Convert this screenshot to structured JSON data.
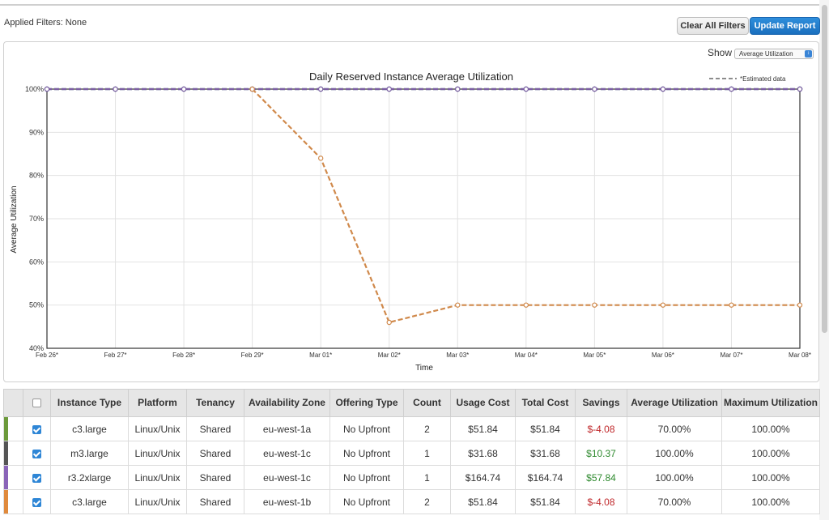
{
  "filters": {
    "applied_label": "Applied Filters: None"
  },
  "toolbar": {
    "clear_label": "Clear All Filters",
    "update_label": "Update Report"
  },
  "show": {
    "label": "Show",
    "selected": "Average Utilization"
  },
  "chart_data": {
    "type": "line",
    "title": "Daily Reserved Instance Average Utilization",
    "xlabel": "Time",
    "ylabel": "Average Utilization",
    "legend": {
      "label": "*Estimated data",
      "position": "top-right"
    },
    "x": [
      "Feb 26*",
      "Feb 27*",
      "Feb 28*",
      "Feb 29*",
      "Mar 01*",
      "Mar 02*",
      "Mar 03*",
      "Mar 04*",
      "Mar 05*",
      "Mar 06*",
      "Mar 07*",
      "Mar 08*"
    ],
    "ylim": [
      40,
      100
    ],
    "yticks": [
      40,
      50,
      60,
      70,
      80,
      90,
      100
    ],
    "ytick_labels": [
      "40%",
      "50%",
      "60%",
      "70%",
      "80%",
      "90%",
      "100%"
    ],
    "grid": true,
    "series": [
      {
        "color": "#3a7a63",
        "style": "dashed",
        "values": [
          100,
          100,
          100,
          100,
          100,
          100,
          100,
          100,
          100,
          100,
          100,
          100
        ]
      },
      {
        "color": "#5e6aa8",
        "style": "dashed",
        "values": [
          100,
          100,
          100,
          100,
          100,
          100,
          100,
          100,
          100,
          100,
          100,
          100
        ]
      },
      {
        "color": "#7d5fa3",
        "style": "dashed",
        "values": [
          100,
          100,
          100,
          100,
          100,
          100,
          100,
          100,
          100,
          100,
          100,
          100
        ]
      },
      {
        "color": "#d0894b",
        "style": "dashed",
        "values": [
          null,
          null,
          null,
          100,
          84,
          46,
          50,
          50,
          50,
          50,
          50,
          50
        ]
      }
    ]
  },
  "table": {
    "headers": [
      "Instance Type",
      "Platform",
      "Tenancy",
      "Availability Zone",
      "Offering Type",
      "Count",
      "Usage Cost",
      "Total Cost",
      "Savings",
      "Average Utilization",
      "Maximum Utilization"
    ],
    "rows": [
      {
        "color": "#6c9a3b",
        "checked": true,
        "instance_type": "c3.large",
        "platform": "Linux/Unix",
        "tenancy": "Shared",
        "zone": "eu-west-1a",
        "offering": "No Upfront",
        "count": "2",
        "usage_cost": "$51.84",
        "total_cost": "$51.84",
        "savings": "$-4.08",
        "savings_sign": "neg",
        "avg_util": "70.00%",
        "max_util": "100.00%"
      },
      {
        "color": "#555555",
        "checked": true,
        "instance_type": "m3.large",
        "platform": "Linux/Unix",
        "tenancy": "Shared",
        "zone": "eu-west-1c",
        "offering": "No Upfront",
        "count": "1",
        "usage_cost": "$31.68",
        "total_cost": "$31.68",
        "savings": "$10.37",
        "savings_sign": "pos",
        "avg_util": "100.00%",
        "max_util": "100.00%"
      },
      {
        "color": "#8a64b8",
        "checked": true,
        "instance_type": "r3.2xlarge",
        "platform": "Linux/Unix",
        "tenancy": "Shared",
        "zone": "eu-west-1c",
        "offering": "No Upfront",
        "count": "1",
        "usage_cost": "$164.74",
        "total_cost": "$164.74",
        "savings": "$57.84",
        "savings_sign": "pos",
        "avg_util": "100.00%",
        "max_util": "100.00%"
      },
      {
        "color": "#e08a3c",
        "checked": true,
        "instance_type": "c3.large",
        "platform": "Linux/Unix",
        "tenancy": "Shared",
        "zone": "eu-west-1b",
        "offering": "No Upfront",
        "count": "2",
        "usage_cost": "$51.84",
        "total_cost": "$51.84",
        "savings": "$-4.08",
        "savings_sign": "neg",
        "avg_util": "70.00%",
        "max_util": "100.00%"
      }
    ]
  }
}
